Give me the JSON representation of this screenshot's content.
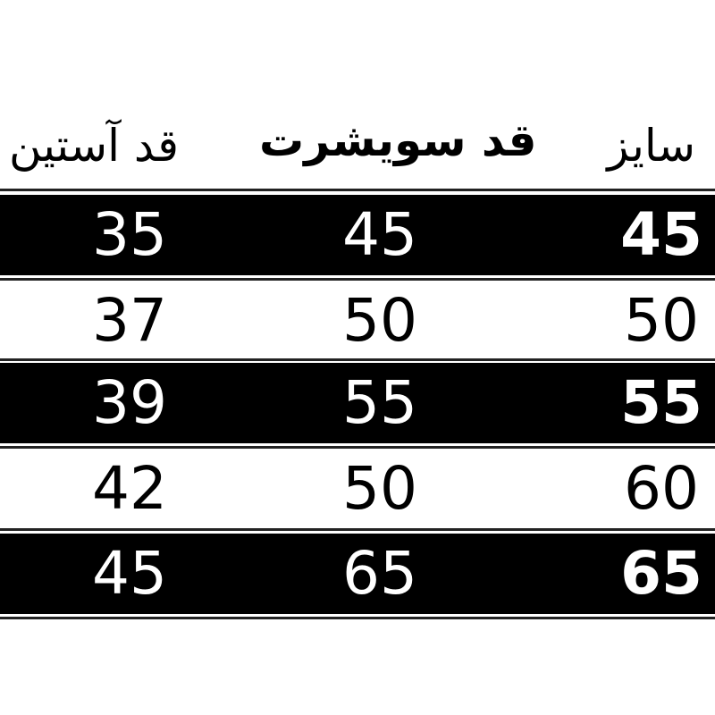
{
  "headers": [
    "سایز",
    "قد سویشرت",
    "قد آستین"
  ],
  "rows": [
    {
      "size": "45",
      "length": "45",
      "sleeve": "35",
      "style": "dark"
    },
    {
      "size": "50",
      "length": "50",
      "sleeve": "37",
      "style": "light"
    },
    {
      "size": "55",
      "length": "55",
      "sleeve": "39",
      "style": "dark"
    },
    {
      "size": "60",
      "length": "50",
      "sleeve": "42",
      "style": "light"
    },
    {
      "size": "65",
      "length": "65",
      "sleeve": "45",
      "style": "dark"
    }
  ],
  "colors": {
    "dark_row": "#000000",
    "light_row": "#ffffff"
  }
}
